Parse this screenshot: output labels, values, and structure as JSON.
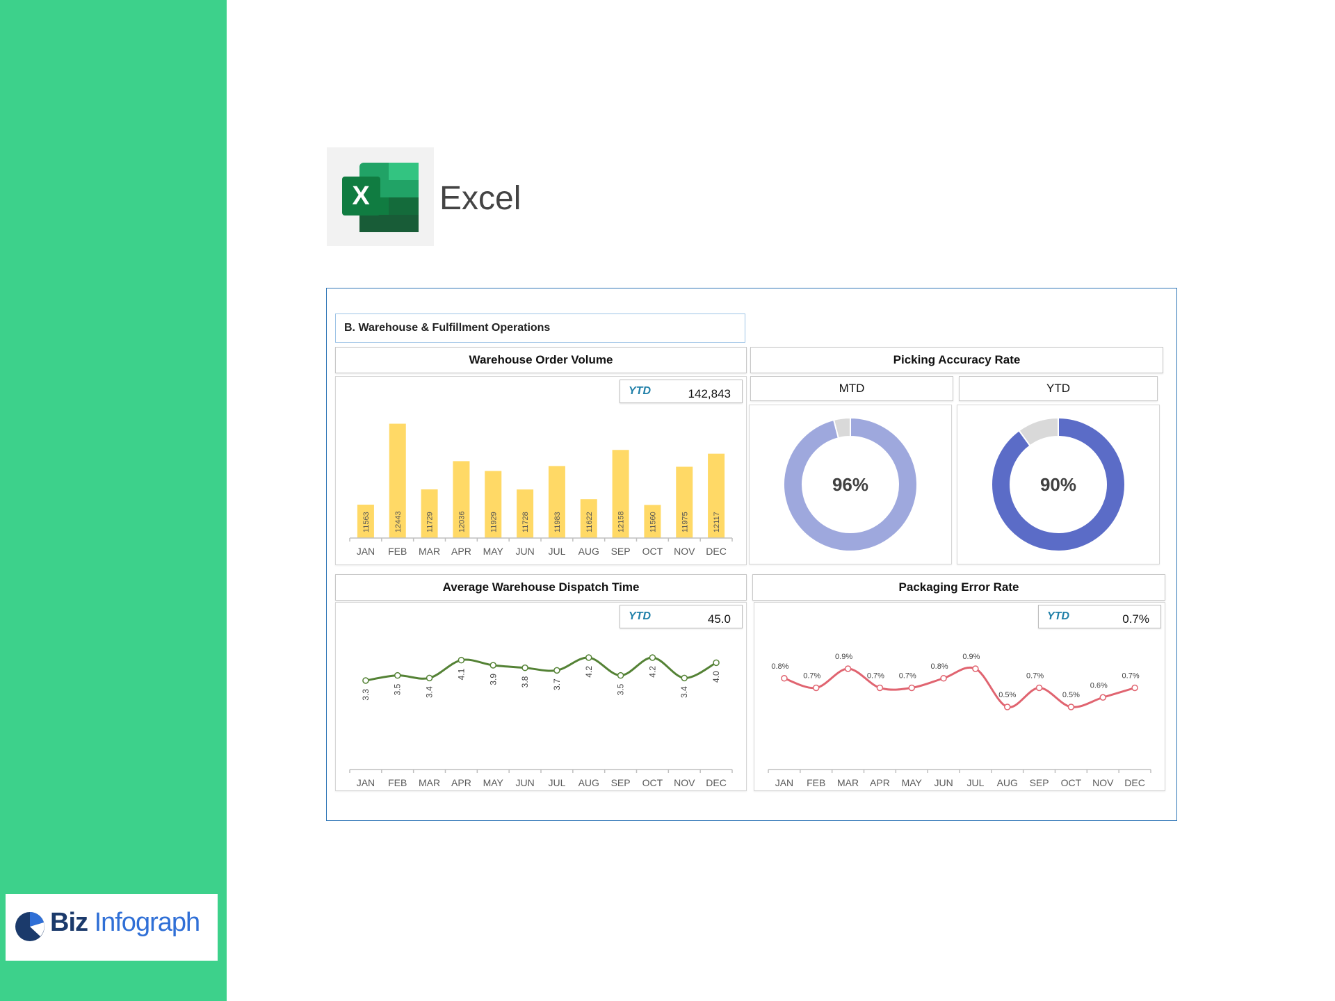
{
  "app": {
    "name": "Excel"
  },
  "brand": {
    "word1": "Biz",
    "word2": "Infograph"
  },
  "dashboard": {
    "section_title": "B. Warehouse & Fulfillment Operations",
    "order_volume": {
      "title": "Warehouse Order Volume",
      "ytd_label": "YTD",
      "ytd_value": "142,843"
    },
    "picking": {
      "title": "Picking Accuracy Rate",
      "mtd_label": "MTD",
      "mtd_value": "96%",
      "ytd_label": "YTD",
      "ytd_value": "90%"
    },
    "dispatch": {
      "title": "Average Warehouse Dispatch Time",
      "ytd_label": "YTD",
      "ytd_value": "45.0"
    },
    "packaging": {
      "title": "Packaging Error Rate",
      "ytd_label": "YTD",
      "ytd_value": "0.7%"
    }
  },
  "chart_data": [
    {
      "type": "bar",
      "categories": [
        "JAN",
        "FEB",
        "MAR",
        "APR",
        "MAY",
        "JUN",
        "JUL",
        "AUG",
        "SEP",
        "OCT",
        "NOV",
        "DEC"
      ],
      "values": [
        11563,
        12443,
        11729,
        12036,
        11929,
        11728,
        11983,
        11622,
        12158,
        11560,
        11975,
        12117
      ],
      "ylim": [
        11200,
        12500
      ],
      "color": "#ffd966"
    },
    {
      "type": "line",
      "categories": [
        "JAN",
        "FEB",
        "MAR",
        "APR",
        "MAY",
        "JUN",
        "JUL",
        "AUG",
        "SEP",
        "OCT",
        "NOV",
        "DEC"
      ],
      "values": [
        3.3,
        3.5,
        3.4,
        4.1,
        3.9,
        3.8,
        3.7,
        4.2,
        3.5,
        4.2,
        3.4,
        4.0
      ],
      "color": "#548235"
    },
    {
      "type": "line",
      "categories": [
        "JAN",
        "FEB",
        "MAR",
        "APR",
        "MAY",
        "JUN",
        "JUL",
        "AUG",
        "SEP",
        "OCT",
        "NOV",
        "DEC"
      ],
      "values": [
        0.8,
        0.7,
        0.9,
        0.7,
        0.7,
        0.8,
        0.9,
        0.5,
        0.7,
        0.5,
        0.6,
        0.7
      ],
      "labels": [
        "0.8%",
        "0.7%",
        "0.9%",
        "0.7%",
        "0.7%",
        "0.8%",
        "0.9%",
        "0.5%",
        "0.7%",
        "0.5%",
        "0.6%",
        "0.7%"
      ],
      "color": "#e06470"
    },
    {
      "type": "pie",
      "values": [
        96,
        4
      ],
      "label": "96%",
      "colors": [
        "#9ea8dd",
        "#d9d9d9"
      ]
    },
    {
      "type": "pie",
      "values": [
        90,
        10
      ],
      "label": "90%",
      "colors": [
        "#5b6cc7",
        "#d9d9d9"
      ]
    }
  ]
}
